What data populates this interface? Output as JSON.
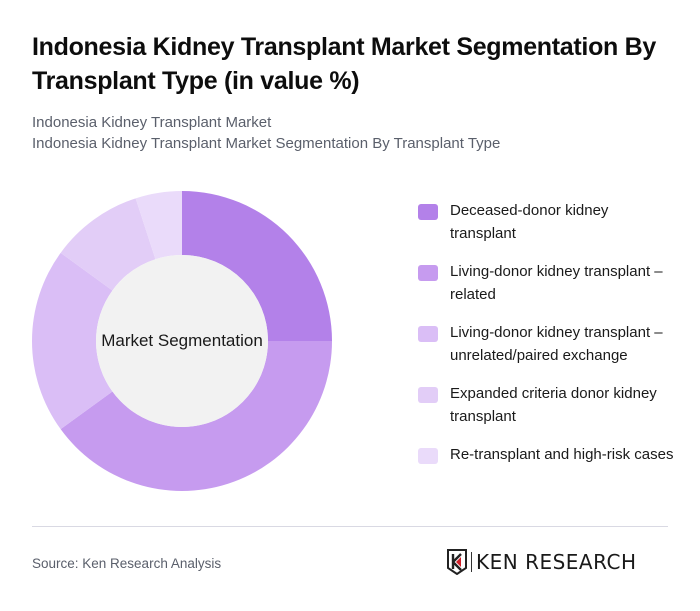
{
  "header": {
    "title": "Indonesia Kidney Transplant Market Segmentation By Transplant Type (in value %)",
    "subtitle_line1": "Indonesia Kidney Transplant Market",
    "subtitle_line2": "Indonesia Kidney Transplant Market Segmentation By Transplant Type"
  },
  "chart": {
    "center_label": "Market Segmentation"
  },
  "legend": {
    "items": [
      {
        "label": "Deceased-donor kidney transplant",
        "color": "#b381e9"
      },
      {
        "label": "Living-donor kidney transplant – related",
        "color": "#c69bef"
      },
      {
        "label": "Living-donor kidney transplant – unrelated/paired exchange",
        "color": "#dabef6"
      },
      {
        "label": "Expanded criteria donor kidney transplant",
        "color": "#e2cdf7"
      },
      {
        "label": "Re-transplant and high-risk cases",
        "color": "#eadbfa"
      }
    ]
  },
  "footer": {
    "source": "Source: Ken Research Analysis",
    "logo_text": "KEN RESEARCH"
  },
  "chart_data": {
    "type": "pie",
    "variant": "donut",
    "title": "Indonesia Kidney Transplant Market Segmentation By Transplant Type (in value %)",
    "center_label": "Market Segmentation",
    "categories": [
      "Deceased-donor kidney transplant",
      "Living-donor kidney transplant – related",
      "Living-donor kidney transplant – unrelated/paired exchange",
      "Expanded criteria donor kidney transplant",
      "Re-transplant and high-risk cases"
    ],
    "values": [
      25,
      40,
      20,
      10,
      5
    ],
    "colors": [
      "#b381e9",
      "#c69bef",
      "#dabef6",
      "#e2cdf7",
      "#eadbfa"
    ],
    "unit": "%",
    "legend_position": "right",
    "data_labels": false
  }
}
